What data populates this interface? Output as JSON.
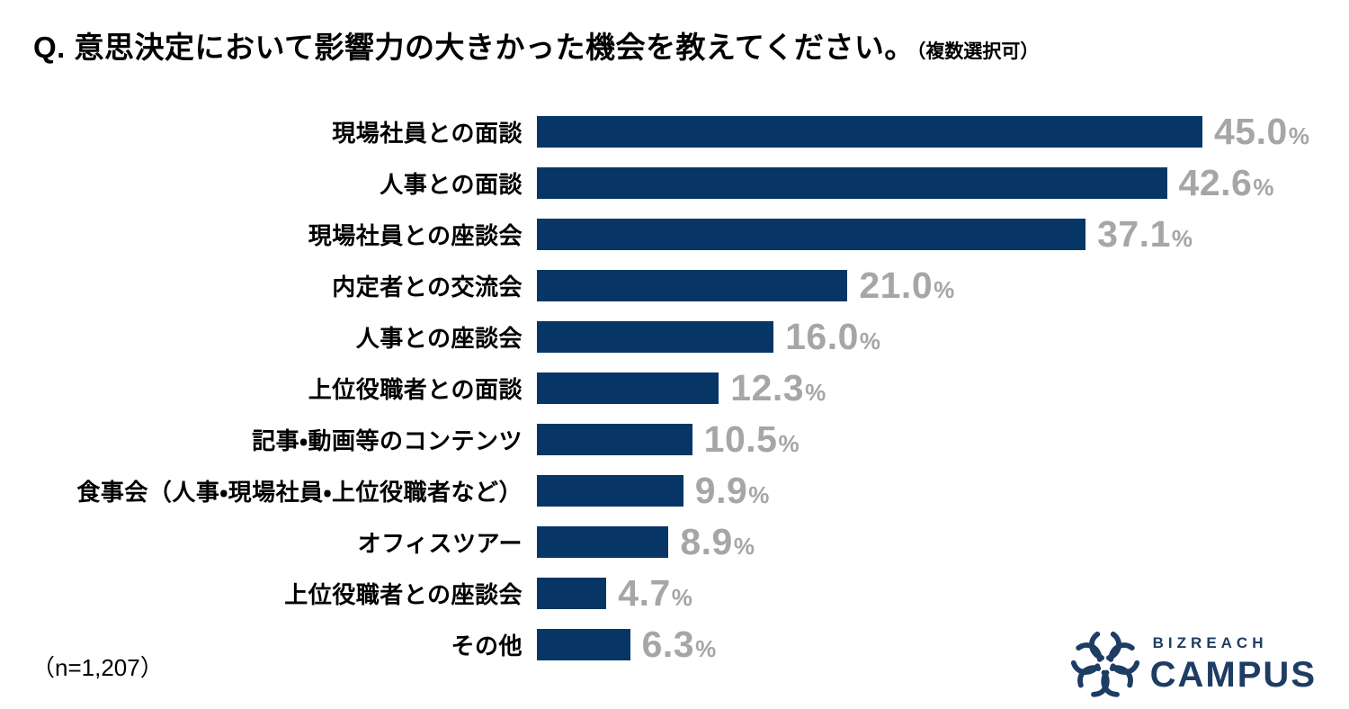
{
  "title": {
    "text": "Q. 意思決定において影響力の大きかった機会を教えてください。",
    "suffix": "（複数選択可）"
  },
  "note": "（n=1,207）",
  "logo": {
    "icon": "sakura-flower-icon",
    "top": "BIZREACH",
    "bottom": "CAMPUS",
    "color": "#1e3d64"
  },
  "colors": {
    "background": "#ffffff",
    "bar": "#073666",
    "value_text": "#a6a6a6",
    "label_text": "#000000",
    "title_text": "#000000"
  },
  "chart_data": {
    "type": "bar",
    "orientation": "horizontal",
    "title": "Q. 意思決定において影響力の大きかった機会を教えてください。（複数選択可）",
    "sample_size": "n=1,207",
    "categories": [
      "現場社員との面談",
      "人事との面談",
      "現場社員との座談会",
      "内定者との交流会",
      "人事との座談会",
      "上位役職者との面談",
      "記事・動画等のコンテンツ",
      "食事会（人事・現場社員・上位役職者など）",
      "オフィスツアー",
      "上位役職者との座談会",
      "その他"
    ],
    "values": [
      45.0,
      42.6,
      37.1,
      21.0,
      16.0,
      12.3,
      10.5,
      9.9,
      8.9,
      4.7,
      6.3
    ],
    "value_suffix": "%",
    "value_decimals": 1,
    "xlim": [
      0,
      45
    ],
    "grid": false,
    "legend": false
  }
}
